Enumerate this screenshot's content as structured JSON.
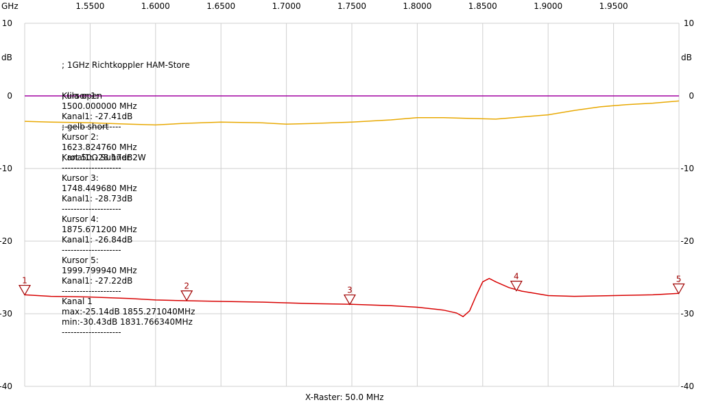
{
  "header": {
    "x_unit": "GHz",
    "y_unit": "dB"
  },
  "notes": [
    "; 1GHz Richtkoppler HAM-Store",
    "; lila open",
    "; gelb short",
    "; rot 50Ω Suhner 2W"
  ],
  "footer": {
    "x_raster": "X-Raster: 50.0 MHz"
  },
  "cursors": [
    {
      "title": "Kursor 1:",
      "freq": "1500.000000 MHz",
      "value": "Kanal1: -27.41dB",
      "marker": "1",
      "separator": "--------------------"
    },
    {
      "title": "Kursor 2:",
      "freq": "1623.824760 MHz",
      "value": "Kanal1: -28.17dB",
      "marker": "2",
      "separator": "--------------------"
    },
    {
      "title": "Kursor 3:",
      "freq": "1748.449680 MHz",
      "value": "Kanal1: -28.73dB",
      "marker": "3",
      "separator": "--------------------"
    },
    {
      "title": "Kursor 4:",
      "freq": "1875.671200 MHz",
      "value": "Kanal1: -26.84dB",
      "marker": "4",
      "separator": "--------------------"
    },
    {
      "title": "Kursor 5:",
      "freq": "1999.799940 MHz",
      "value": "Kanal1: -27.22dB",
      "marker": "5",
      "separator": "--------------------"
    }
  ],
  "kanal_summary": {
    "title": "Kanal 1",
    "max": "max:-25.14dB 1855.271040MHz",
    "min": "min:-30.43dB 1831.766340MHz",
    "separator": "--------------------"
  },
  "chart_data": {
    "type": "line",
    "xlim": [
      1.5,
      2.0
    ],
    "ylim": [
      -40,
      10
    ],
    "x_ticks": [
      "1.5500",
      "1.6000",
      "1.6500",
      "1.7000",
      "1.7500",
      "1.8000",
      "1.8500",
      "1.9000",
      "1.9500"
    ],
    "x_tick_values": [
      1.55,
      1.6,
      1.65,
      1.7,
      1.75,
      1.8,
      1.85,
      1.9,
      1.95
    ],
    "y_ticks": [
      "10",
      "0",
      "-10",
      "-20",
      "-30",
      "-40"
    ],
    "y_tick_values": [
      10,
      0,
      -10,
      -20,
      -30,
      -40
    ],
    "grid": true,
    "colors": {
      "lila": "#a000a0",
      "gelb": "#e8a800",
      "rot": "#d80000",
      "grid": "#cfcfcf",
      "marker": "#a00000"
    },
    "series": [
      {
        "color": "lila",
        "x": [
          1.5,
          1.6,
          1.7,
          1.8,
          1.9,
          2.0
        ],
        "y": [
          0.0,
          0.0,
          0.0,
          0.0,
          0.0,
          0.0
        ]
      },
      {
        "color": "gelb",
        "x": [
          1.5,
          1.52,
          1.55,
          1.58,
          1.6,
          1.62,
          1.65,
          1.68,
          1.7,
          1.72,
          1.75,
          1.78,
          1.8,
          1.82,
          1.84,
          1.86,
          1.88,
          1.9,
          1.92,
          1.94,
          1.96,
          1.98,
          2.0
        ],
        "y": [
          -3.5,
          -3.6,
          -3.7,
          -3.9,
          -4.0,
          -3.8,
          -3.6,
          -3.7,
          -3.9,
          -3.8,
          -3.6,
          -3.3,
          -3.0,
          -3.0,
          -3.1,
          -3.2,
          -2.9,
          -2.6,
          -2.0,
          -1.5,
          -1.2,
          -1.0,
          -0.7
        ]
      },
      {
        "color": "rot",
        "x": [
          1.5,
          1.52,
          1.55,
          1.58,
          1.6,
          1.62,
          1.65,
          1.68,
          1.7,
          1.72,
          1.75,
          1.78,
          1.8,
          1.82,
          1.83,
          1.835,
          1.84,
          1.845,
          1.85,
          1.855,
          1.86,
          1.87,
          1.88,
          1.89,
          1.9,
          1.92,
          1.95,
          1.98,
          2.0
        ],
        "y": [
          -27.4,
          -27.6,
          -27.7,
          -27.9,
          -28.1,
          -28.2,
          -28.3,
          -28.4,
          -28.5,
          -28.6,
          -28.7,
          -28.9,
          -29.1,
          -29.5,
          -29.9,
          -30.4,
          -29.6,
          -27.5,
          -25.6,
          -25.14,
          -25.6,
          -26.4,
          -26.9,
          -27.2,
          -27.5,
          -27.6,
          -27.5,
          -27.4,
          -27.2
        ]
      }
    ],
    "markers": [
      {
        "label": "1",
        "x": 1.5,
        "y": -27.41
      },
      {
        "label": "2",
        "x": 1.6238,
        "y": -28.17
      },
      {
        "label": "3",
        "x": 1.7484,
        "y": -28.73
      },
      {
        "label": "4",
        "x": 1.8757,
        "y": -26.84
      },
      {
        "label": "5",
        "x": 1.9998,
        "y": -27.22
      }
    ]
  }
}
